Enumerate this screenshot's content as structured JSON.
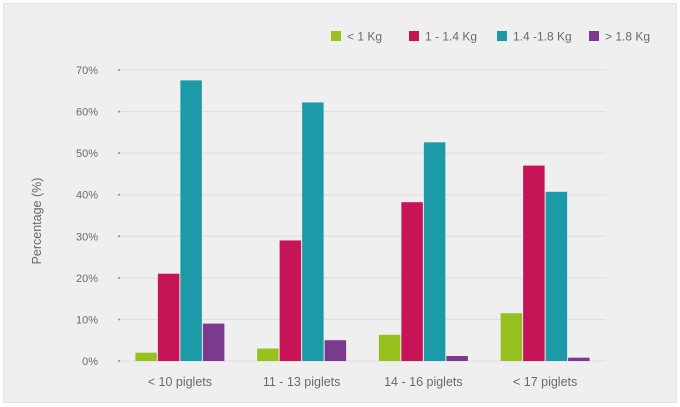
{
  "chart_data": {
    "type": "bar",
    "title": "",
    "xlabel": "",
    "ylabel": "Percentage (%)",
    "ylim": [
      0,
      70
    ],
    "yticks": [
      "0%",
      "10%",
      "20%",
      "30%",
      "40%",
      "50%",
      "60%",
      "70%"
    ],
    "grid": true,
    "legend_position": "top-right",
    "categories": [
      "< 10 piglets",
      "11 - 13 piglets",
      "14 - 16 piglets",
      "< 17 piglets"
    ],
    "series": [
      {
        "name": "< 1 Kg",
        "color": "#97c11f",
        "values": [
          2,
          3,
          6.3,
          11.5
        ]
      },
      {
        "name": "1 - 1.4 Kg",
        "color": "#c71457",
        "values": [
          21,
          29,
          38.2,
          47
        ]
      },
      {
        "name": "1.4 -1.8 Kg",
        "color": "#1c9aa7",
        "values": [
          67.5,
          62.2,
          52.6,
          40.7
        ]
      },
      {
        "name": "> 1.8 Kg",
        "color": "#7b3a8e",
        "values": [
          9,
          5,
          1.2,
          0.8
        ]
      }
    ]
  }
}
